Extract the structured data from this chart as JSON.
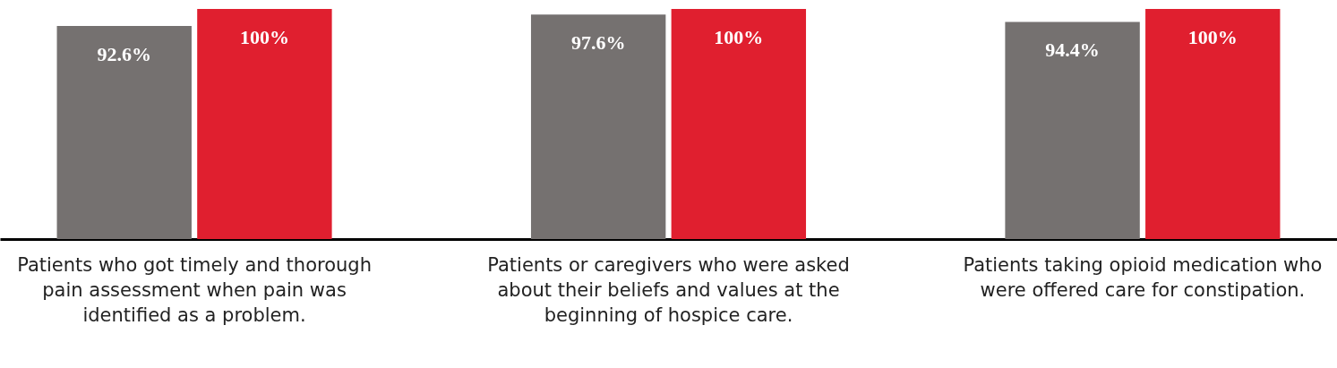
{
  "chart_data": {
    "type": "bar",
    "categories": [
      "Patients who got timely and thorough pain assessment when pain was identified as a problem.",
      "Patients or caregivers who were asked about their beliefs and values at the beginning of hospice care.",
      "Patients taking opioid medication who were offered care for constipation."
    ],
    "series": [
      {
        "color": "#757170",
        "values": [
          92.6,
          97.6,
          94.4
        ],
        "value_labels": [
          "92.6%",
          "97.6%",
          "94.4%"
        ]
      },
      {
        "color": "#e01f2f",
        "values": [
          100,
          100,
          100
        ],
        "value_labels": [
          "100%",
          "100%",
          "100%"
        ]
      }
    ]
  }
}
